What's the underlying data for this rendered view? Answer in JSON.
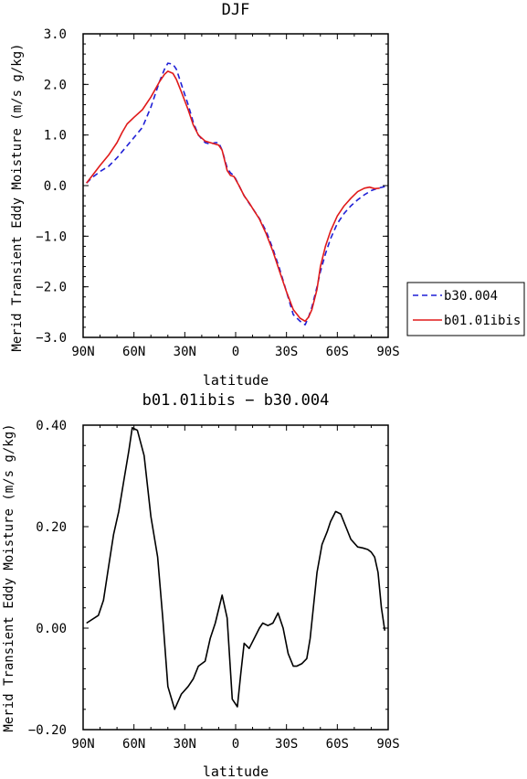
{
  "top_panel": {
    "title": "DJF",
    "ylabel": "Merid Transient Eddy Moisture (m/s g/kg)",
    "xlabel": "latitude"
  },
  "bottom_panel": {
    "title": "b01.01ibis − b30.004",
    "ylabel": "Merid Transient Eddy Moisture (m/s g/kg)",
    "xlabel": "latitude"
  },
  "legend": {
    "items": [
      {
        "label": "b30.004",
        "color": "#1f1fd6",
        "style": "dashed"
      },
      {
        "label": "b01.01ibis",
        "color": "#e01a1a",
        "style": "solid"
      }
    ]
  },
  "chart_data": [
    {
      "type": "line",
      "title": "DJF",
      "xlabel": "latitude",
      "ylabel": "Merid Transient Eddy Moisture (m/s g/kg)",
      "xlim": [
        90,
        -90
      ],
      "ylim": [
        -3.0,
        3.0
      ],
      "x_ticks": [
        90,
        60,
        30,
        0,
        -30,
        -60,
        -90
      ],
      "x_tick_labels": [
        "90N",
        "60N",
        "30N",
        "0",
        "30S",
        "60S",
        "90S"
      ],
      "y_ticks": [
        3.0,
        2.0,
        1.0,
        0.0,
        -1.0,
        -2.0,
        -3.0
      ],
      "y_tick_labels": [
        "3.0",
        "2.0",
        "1.0",
        "0.0",
        "−1.0",
        "−2.0",
        "−3.0"
      ],
      "series": [
        {
          "name": "b30.004",
          "color": "#1f1fd6",
          "dash": "dashed",
          "x": [
            88,
            85,
            80,
            75,
            70,
            65,
            60,
            55,
            50,
            45,
            42,
            40,
            37,
            35,
            32,
            28,
            25,
            22,
            18,
            15,
            12,
            10,
            8,
            5,
            3,
            1,
            -2,
            -5,
            -8,
            -10,
            -14,
            -18,
            -22,
            -26,
            -30,
            -34,
            -38,
            -41,
            -43,
            -45,
            -48,
            -50,
            -53,
            -56,
            -60,
            -64,
            -68,
            -72,
            -76,
            -80,
            -84,
            -88
          ],
          "y": [
            0.05,
            0.15,
            0.28,
            0.38,
            0.55,
            0.75,
            0.95,
            1.15,
            1.55,
            2.05,
            2.3,
            2.42,
            2.4,
            2.3,
            2.0,
            1.6,
            1.25,
            1.0,
            0.85,
            0.82,
            0.85,
            0.85,
            0.7,
            0.35,
            0.25,
            0.2,
            0.0,
            -0.2,
            -0.35,
            -0.45,
            -0.65,
            -0.9,
            -1.25,
            -1.65,
            -2.1,
            -2.55,
            -2.68,
            -2.75,
            -2.6,
            -2.4,
            -2.0,
            -1.7,
            -1.35,
            -1.05,
            -0.75,
            -0.55,
            -0.4,
            -0.28,
            -0.18,
            -0.1,
            -0.05,
            -0.02
          ]
        },
        {
          "name": "b01.01ibis",
          "color": "#e01a1a",
          "dash": "solid",
          "x": [
            88,
            85,
            80,
            75,
            70,
            67,
            64,
            60,
            55,
            50,
            45,
            42,
            40,
            37,
            35,
            32,
            28,
            25,
            22,
            18,
            15,
            12,
            10,
            8,
            5,
            3,
            1,
            -2,
            -5,
            -8,
            -10,
            -14,
            -18,
            -22,
            -26,
            -30,
            -34,
            -38,
            -41,
            -43,
            -45,
            -48,
            -50,
            -53,
            -56,
            -60,
            -64,
            -68,
            -72,
            -76,
            -79,
            -82,
            -85
          ],
          "y": [
            0.05,
            0.18,
            0.4,
            0.6,
            0.85,
            1.05,
            1.22,
            1.35,
            1.5,
            1.75,
            2.05,
            2.2,
            2.26,
            2.22,
            2.1,
            1.85,
            1.5,
            1.2,
            1.0,
            0.88,
            0.85,
            0.82,
            0.8,
            0.7,
            0.3,
            0.2,
            0.18,
            0.0,
            -0.2,
            -0.34,
            -0.45,
            -0.66,
            -0.95,
            -1.3,
            -1.7,
            -2.1,
            -2.45,
            -2.62,
            -2.68,
            -2.6,
            -2.45,
            -2.05,
            -1.6,
            -1.2,
            -0.9,
            -0.6,
            -0.4,
            -0.25,
            -0.12,
            -0.05,
            -0.03,
            -0.06,
            -0.05
          ]
        }
      ]
    },
    {
      "type": "line",
      "title": "b01.01ibis − b30.004",
      "xlabel": "latitude",
      "ylabel": "Merid Transient Eddy Moisture (m/s g/kg)",
      "xlim": [
        90,
        -90
      ],
      "ylim": [
        -0.2,
        0.4
      ],
      "x_ticks": [
        90,
        60,
        30,
        0,
        -30,
        -60,
        -90
      ],
      "x_tick_labels": [
        "90N",
        "60N",
        "30N",
        "0",
        "30S",
        "60S",
        "90S"
      ],
      "y_ticks": [
        0.4,
        0.2,
        0.0,
        -0.2
      ],
      "y_tick_labels": [
        "0.40",
        "0.20",
        "0.00",
        "−0.20"
      ],
      "series": [
        {
          "color": "#000000",
          "dash": "solid",
          "x": [
            88,
            81,
            78,
            75,
            72,
            69,
            66,
            63,
            61,
            58,
            54,
            50,
            46,
            43,
            40,
            36,
            32,
            28,
            25,
            22,
            18,
            15,
            12,
            8,
            5,
            2,
            -1,
            -3,
            -5,
            -8,
            -11,
            -14,
            -16,
            -19,
            -22,
            -25,
            -28,
            -31,
            -34,
            -36,
            -39,
            -42,
            -44,
            -48,
            -51,
            -54,
            -56,
            -59,
            -62,
            -65,
            -68,
            -72,
            -75,
            -78,
            -80,
            -82,
            -84,
            -86,
            -88
          ],
          "y": [
            0.01,
            0.025,
            0.055,
            0.12,
            0.185,
            0.23,
            0.29,
            0.35,
            0.395,
            0.39,
            0.34,
            0.22,
            0.14,
            0.02,
            -0.115,
            -0.16,
            -0.13,
            -0.115,
            -0.1,
            -0.075,
            -0.065,
            -0.02,
            0.01,
            0.065,
            0.02,
            -0.14,
            -0.155,
            -0.09,
            -0.03,
            -0.04,
            -0.02,
            0.0,
            0.01,
            0.005,
            0.01,
            0.03,
            0.0,
            -0.05,
            -0.075,
            -0.075,
            -0.07,
            -0.06,
            -0.02,
            0.11,
            0.165,
            0.19,
            0.21,
            0.23,
            0.225,
            0.2,
            0.175,
            0.16,
            0.158,
            0.155,
            0.15,
            0.14,
            0.11,
            0.04,
            -0.005
          ]
        }
      ]
    }
  ]
}
